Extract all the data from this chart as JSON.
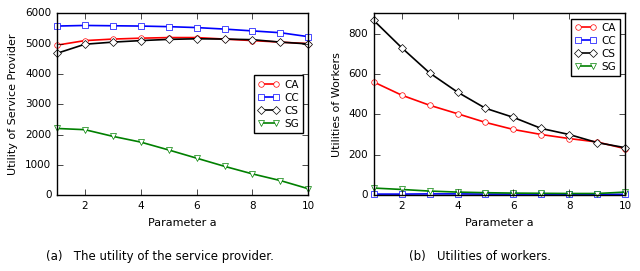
{
  "x": [
    1,
    2,
    3,
    4,
    5,
    6,
    7,
    8,
    9,
    10
  ],
  "left_CA": [
    4950,
    5100,
    5150,
    5180,
    5200,
    5200,
    5150,
    5100,
    5050,
    5000
  ],
  "left_CC": [
    5580,
    5600,
    5590,
    5580,
    5560,
    5530,
    5480,
    5420,
    5360,
    5230
  ],
  "left_CS": [
    4680,
    4980,
    5050,
    5100,
    5140,
    5160,
    5150,
    5130,
    5050,
    4990
  ],
  "left_SG": [
    2200,
    2160,
    1940,
    1750,
    1490,
    1220,
    950,
    700,
    480,
    210
  ],
  "right_CA": [
    560,
    495,
    445,
    403,
    360,
    325,
    300,
    280,
    263,
    230
  ],
  "right_CC": [
    5,
    5,
    6,
    6,
    5,
    5,
    5,
    4,
    4,
    4
  ],
  "right_CS": [
    865,
    730,
    605,
    510,
    430,
    385,
    330,
    300,
    260,
    235
  ],
  "right_SG": [
    35,
    28,
    20,
    15,
    12,
    10,
    9,
    8,
    8,
    15
  ],
  "left_ylabel": "Utility of Service Provider",
  "right_ylabel": "Utilities of Workers",
  "xlabel": "Parameter a",
  "left_caption": "(a)   The utility of the service provider.",
  "right_caption": "(b)   Utilities of workers.",
  "legend_labels": [
    "CA",
    "CC",
    "CS",
    "SG"
  ],
  "colors": [
    "red",
    "blue",
    "black",
    "green"
  ],
  "markers": [
    "o",
    "s",
    "D",
    "v"
  ],
  "left_ylim": [
    0,
    6000
  ],
  "left_yticks": [
    0,
    1000,
    2000,
    3000,
    4000,
    5000,
    6000
  ],
  "right_ylim": [
    0,
    900
  ],
  "right_yticks": [
    0,
    200,
    400,
    600,
    800
  ],
  "xticks": [
    2,
    4,
    6,
    8,
    10
  ]
}
